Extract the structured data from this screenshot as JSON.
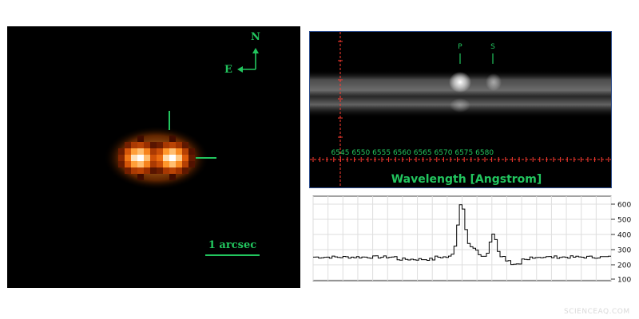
{
  "image_panel": {
    "compass": {
      "north": "N",
      "east": "E"
    },
    "scale_bar_label": "1 arcsec",
    "accent": "#22c55e",
    "blob_colors": [
      "#ff8a1a",
      "#ffe9c7",
      "#ffffff"
    ]
  },
  "spectrum_panel": {
    "markers": [
      "P",
      "S"
    ],
    "tick_labels": [
      "6545",
      "6550",
      "6555",
      "6560",
      "6565",
      "6570",
      "6575",
      "6580"
    ],
    "axis_label": "Wavelength [Angstrom]",
    "accent": "#22c55e",
    "cursor_color": "#ff3b30"
  },
  "profile_panel": {
    "y_ticks": [
      "600",
      "500",
      "400",
      "300",
      "200",
      "100"
    ]
  },
  "watermark": "SCIENCEAQ.COM"
}
